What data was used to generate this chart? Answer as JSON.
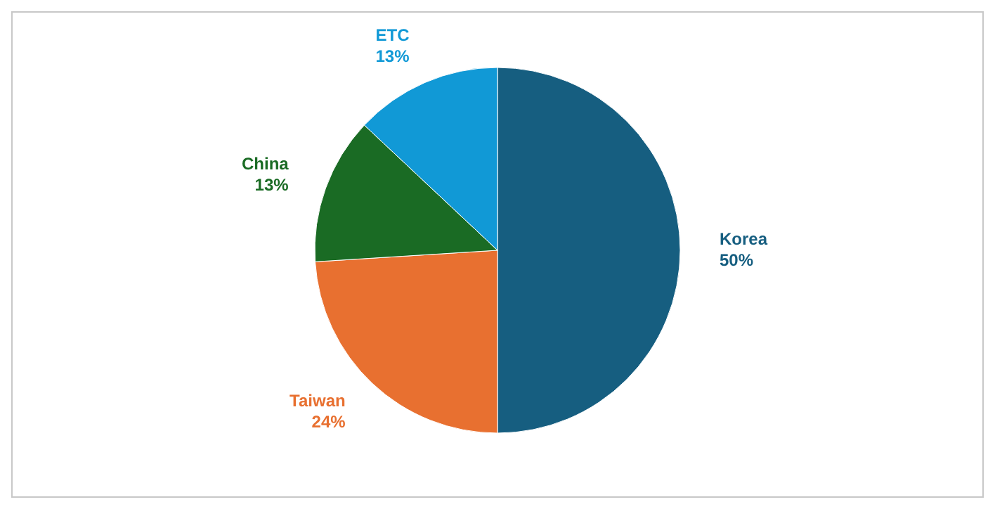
{
  "chart_data": {
    "type": "pie",
    "categories": [
      "Korea",
      "Taiwan",
      "China",
      "ETC"
    ],
    "values": [
      50,
      24,
      13,
      13
    ],
    "colors": [
      "#165e80",
      "#e87030",
      "#1a6b24",
      "#1199d6"
    ],
    "value_labels": [
      "50%",
      "24%",
      "13%",
      "13%"
    ]
  }
}
